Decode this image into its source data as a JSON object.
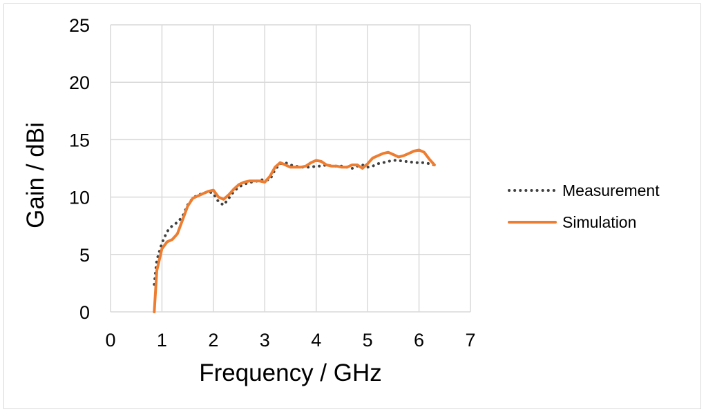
{
  "chart_data": {
    "type": "line",
    "xlabel": "Frequency / GHz",
    "ylabel": "Gain / dBi",
    "xlim": [
      0,
      7
    ],
    "ylim": [
      0,
      25
    ],
    "xticks": [
      0,
      1,
      2,
      3,
      4,
      5,
      6,
      7
    ],
    "yticks": [
      0,
      5,
      10,
      15,
      20,
      25
    ],
    "grid": true,
    "legend_position": "right",
    "series": [
      {
        "name": "Measurement",
        "style": "dotted",
        "color": "#404040",
        "x": [
          0.85,
          0.9,
          1.0,
          1.1,
          1.2,
          1.3,
          1.4,
          1.5,
          1.6,
          1.7,
          1.8,
          1.9,
          2.0,
          2.1,
          2.2,
          2.3,
          2.4,
          2.5,
          2.6,
          2.7,
          2.8,
          2.9,
          3.0,
          3.1,
          3.2,
          3.3,
          3.4,
          3.5,
          3.6,
          3.7,
          3.8,
          3.9,
          4.0,
          4.1,
          4.2,
          4.3,
          4.4,
          4.5,
          4.6,
          4.7,
          4.8,
          4.9,
          5.0,
          5.1,
          5.2,
          5.3,
          5.4,
          5.5,
          5.6,
          5.7,
          5.8,
          5.9,
          6.0,
          6.1,
          6.2,
          6.3
        ],
        "y": [
          2.4,
          4.5,
          6.0,
          7.0,
          7.5,
          7.8,
          8.3,
          9.3,
          9.9,
          10.2,
          10.3,
          10.5,
          10.3,
          9.6,
          9.3,
          9.9,
          10.5,
          10.9,
          11.1,
          11.3,
          11.3,
          11.5,
          11.5,
          11.5,
          12.4,
          12.9,
          13.0,
          12.8,
          12.7,
          12.6,
          12.6,
          12.6,
          12.7,
          12.7,
          12.8,
          12.7,
          12.7,
          12.7,
          12.6,
          12.5,
          12.7,
          12.8,
          12.6,
          12.7,
          12.9,
          13.0,
          13.1,
          13.2,
          13.2,
          13.1,
          13.1,
          13.0,
          13.0,
          13.0,
          12.9,
          12.8
        ]
      },
      {
        "name": "Simulation",
        "style": "solid",
        "color": "#ED7D31",
        "x": [
          0.85,
          0.9,
          1.0,
          1.1,
          1.2,
          1.3,
          1.4,
          1.5,
          1.6,
          1.7,
          1.8,
          1.9,
          2.0,
          2.1,
          2.2,
          2.3,
          2.4,
          2.5,
          2.6,
          2.7,
          2.8,
          2.9,
          3.0,
          3.1,
          3.2,
          3.3,
          3.4,
          3.5,
          3.6,
          3.7,
          3.8,
          3.9,
          4.0,
          4.1,
          4.2,
          4.3,
          4.4,
          4.5,
          4.6,
          4.7,
          4.8,
          4.9,
          5.0,
          5.1,
          5.2,
          5.3,
          5.4,
          5.5,
          5.6,
          5.7,
          5.8,
          5.9,
          6.0,
          6.1,
          6.2,
          6.3
        ],
        "y": [
          0.0,
          3.6,
          5.5,
          6.1,
          6.3,
          6.8,
          8.0,
          9.2,
          9.9,
          10.1,
          10.3,
          10.5,
          10.6,
          10.0,
          9.8,
          10.2,
          10.7,
          11.1,
          11.3,
          11.4,
          11.4,
          11.4,
          11.3,
          11.8,
          12.6,
          13.0,
          12.8,
          12.6,
          12.6,
          12.6,
          12.7,
          13.0,
          13.2,
          13.1,
          12.8,
          12.7,
          12.7,
          12.6,
          12.6,
          12.8,
          12.8,
          12.5,
          12.9,
          13.4,
          13.6,
          13.8,
          13.9,
          13.7,
          13.5,
          13.6,
          13.8,
          14.0,
          14.1,
          13.9,
          13.3,
          12.8
        ]
      }
    ]
  }
}
